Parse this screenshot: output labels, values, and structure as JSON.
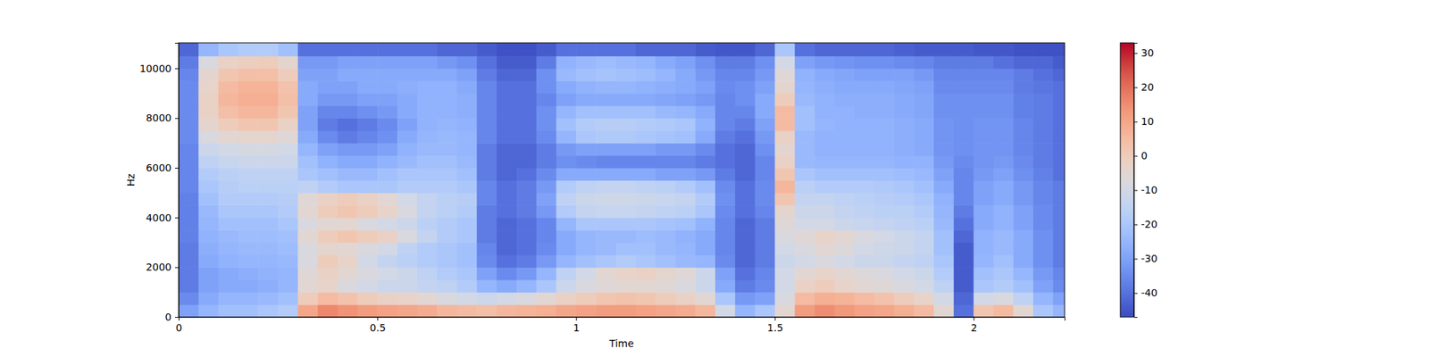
{
  "chart_data": {
    "type": "heatmap",
    "x_label": "Time",
    "y_label": "Hz",
    "xlim": [
      0,
      2.229
    ],
    "ylim": [
      0,
      11025
    ],
    "xticks": [
      0,
      0.5,
      1,
      1.5,
      2
    ],
    "yticks": [
      0,
      2000,
      4000,
      6000,
      8000,
      10000
    ],
    "x_bins": [
      0,
      0.05,
      0.1,
      0.15,
      0.2,
      0.25,
      0.3,
      0.35,
      0.4,
      0.45,
      0.5,
      0.55,
      0.6,
      0.65,
      0.7,
      0.75,
      0.8,
      0.85,
      0.9,
      0.95,
      1,
      1.05,
      1.1,
      1.15,
      1.2,
      1.25,
      1.3,
      1.35,
      1.4,
      1.45,
      1.5,
      1.55,
      1.6,
      1.65,
      1.7,
      1.75,
      1.8,
      1.85,
      1.9,
      1.95,
      2,
      2.05,
      2.1,
      2.15,
      2.2,
      2.229
    ],
    "y_bins": [
      0,
      500,
      1000,
      1500,
      2000,
      2500,
      3000,
      3500,
      4000,
      4500,
      5000,
      5500,
      6000,
      6500,
      7000,
      7500,
      8000,
      8500,
      9000,
      9500,
      10000,
      10500,
      11025
    ],
    "z": [
      [
        -30,
        -25,
        -22,
        -22,
        -20,
        -18,
        10,
        16,
        14,
        12,
        11,
        10,
        9,
        6,
        5,
        4,
        6,
        7,
        8,
        10,
        11,
        12,
        12,
        11,
        10,
        9,
        6,
        -10,
        -25,
        -20,
        -5,
        12,
        15,
        13,
        11,
        10,
        8,
        5,
        -5,
        -40,
        2,
        5,
        -5,
        -20,
        -25
      ],
      [
        -35,
        -28,
        -25,
        -25,
        -24,
        -22,
        0,
        5,
        3,
        0,
        -2,
        -3,
        -5,
        -8,
        -10,
        -12,
        -10,
        -8,
        -5,
        -2,
        0,
        2,
        3,
        2,
        0,
        -2,
        -5,
        -20,
        -32,
        -30,
        -8,
        5,
        8,
        7,
        5,
        3,
        0,
        -3,
        -10,
        -42,
        -10,
        -8,
        -15,
        -25,
        -30
      ],
      [
        -38,
        -30,
        -28,
        -28,
        -27,
        -25,
        -5,
        -3,
        -8,
        -10,
        -12,
        -12,
        -14,
        -15,
        -18,
        -25,
        -28,
        -25,
        -20,
        -12,
        -8,
        -6,
        -5,
        -5,
        -6,
        -8,
        -12,
        -28,
        -38,
        -35,
        -10,
        -2,
        0,
        -3,
        -5,
        -6,
        -8,
        -10,
        -15,
        -44,
        -20,
        -18,
        -22,
        -30,
        -35
      ],
      [
        -38,
        -30,
        -28,
        -27,
        -26,
        -25,
        -6,
        -2,
        -5,
        -8,
        -10,
        -12,
        -15,
        -18,
        -20,
        -30,
        -35,
        -32,
        -25,
        -15,
        -10,
        -5,
        -3,
        -2,
        -4,
        -6,
        -12,
        -30,
        -40,
        -36,
        -10,
        -5,
        -3,
        -5,
        -7,
        -8,
        -10,
        -12,
        -18,
        -44,
        -22,
        -20,
        -25,
        -32,
        -36
      ],
      [
        -38,
        -28,
        -26,
        -25,
        -25,
        -24,
        -8,
        0,
        -3,
        -10,
        -14,
        -16,
        -18,
        -20,
        -22,
        -35,
        -40,
        -38,
        -32,
        -25,
        -22,
        -20,
        -18,
        -20,
        -22,
        -24,
        -25,
        -35,
        -42,
        -38,
        -12,
        -10,
        -8,
        -10,
        -12,
        -12,
        -14,
        -15,
        -20,
        -44,
        -25,
        -22,
        -28,
        -34,
        -38
      ],
      [
        -38,
        -27,
        -25,
        -24,
        -24,
        -23,
        -8,
        -4,
        -5,
        -8,
        -10,
        -15,
        -18,
        -20,
        -22,
        -36,
        -42,
        -40,
        -35,
        -28,
        -25,
        -24,
        -22,
        -22,
        -24,
        -25,
        -28,
        -36,
        -42,
        -38,
        -10,
        -8,
        -5,
        -7,
        -10,
        -11,
        -12,
        -14,
        -22,
        -44,
        -26,
        -24,
        -28,
        -34,
        -38
      ],
      [
        -37,
        -26,
        -24,
        -23,
        -23,
        -22,
        -5,
        0,
        2,
        0,
        -2,
        -8,
        -14,
        -18,
        -20,
        -38,
        -42,
        -40,
        -36,
        -28,
        -25,
        -24,
        -24,
        -23,
        -24,
        -26,
        -28,
        -36,
        -42,
        -38,
        -8,
        -6,
        -3,
        -5,
        -8,
        -10,
        -12,
        -14,
        -22,
        -42,
        -26,
        -24,
        -28,
        -34,
        -38
      ],
      [
        -37,
        -25,
        -22,
        -22,
        -22,
        -20,
        -8,
        -5,
        -5,
        -8,
        -10,
        -12,
        -16,
        -18,
        -20,
        -38,
        -42,
        -40,
        -36,
        -25,
        -20,
        -20,
        -20,
        -20,
        -21,
        -22,
        -26,
        -36,
        -42,
        -38,
        -6,
        -10,
        -10,
        -12,
        -13,
        -14,
        -15,
        -16,
        -24,
        -40,
        -28,
        -26,
        -30,
        -35,
        -38
      ],
      [
        -37,
        -24,
        -20,
        -20,
        -20,
        -18,
        -5,
        0,
        2,
        0,
        -3,
        -8,
        -14,
        -16,
        -18,
        -38,
        -40,
        -38,
        -32,
        -18,
        -14,
        -13,
        -13,
        -14,
        -15,
        -16,
        -20,
        -35,
        -40,
        -36,
        -4,
        -12,
        -12,
        -14,
        -15,
        -16,
        -16,
        -18,
        -25,
        -38,
        -28,
        -26,
        -30,
        -35,
        -38
      ],
      [
        -37,
        -22,
        -18,
        -18,
        -18,
        -17,
        -6,
        -2,
        0,
        -2,
        -5,
        -10,
        -14,
        -16,
        -17,
        -36,
        -40,
        -38,
        -30,
        -15,
        -12,
        -11,
        -11,
        -12,
        -13,
        -14,
        -18,
        -34,
        -40,
        -35,
        2,
        -14,
        -14,
        -15,
        -16,
        -17,
        -18,
        -20,
        -26,
        -36,
        -30,
        -28,
        -32,
        -36,
        -38
      ],
      [
        -36,
        -20,
        -17,
        -16,
        -16,
        -16,
        -15,
        -18,
        -20,
        -20,
        -20,
        -18,
        -18,
        -18,
        -20,
        -36,
        -40,
        -38,
        -32,
        -18,
        -15,
        -14,
        -14,
        -15,
        -16,
        -18,
        -22,
        -35,
        -40,
        -35,
        6,
        -16,
        -18,
        -18,
        -18,
        -19,
        -20,
        -22,
        -28,
        -36,
        -30,
        -28,
        -32,
        -36,
        -38
      ],
      [
        -36,
        -18,
        -16,
        -15,
        -15,
        -15,
        -20,
        -22,
        -24,
        -24,
        -22,
        -20,
        -20,
        -20,
        -22,
        -38,
        -42,
        -40,
        -35,
        -28,
        -28,
        -28,
        -28,
        -28,
        -30,
        -30,
        -32,
        -38,
        -42,
        -36,
        2,
        -20,
        -22,
        -22,
        -22,
        -22,
        -23,
        -24,
        -30,
        -36,
        -32,
        -30,
        -34,
        -37,
        -40
      ],
      [
        -36,
        -15,
        -13,
        -12,
        -12,
        -12,
        -22,
        -26,
        -28,
        -28,
        -26,
        -24,
        -22,
        -22,
        -24,
        -38,
        -42,
        -42,
        -38,
        -34,
        -35,
        -36,
        -36,
        -36,
        -36,
        -36,
        -38,
        -40,
        -42,
        -36,
        -2,
        -24,
        -25,
        -25,
        -25,
        -25,
        -26,
        -26,
        -32,
        -35,
        -33,
        -32,
        -35,
        -38,
        -40
      ],
      [
        -36,
        -12,
        -10,
        -9,
        -9,
        -10,
        -25,
        -30,
        -32,
        -32,
        -30,
        -26,
        -24,
        -24,
        -25,
        -38,
        -42,
        -42,
        -38,
        -32,
        -30,
        -30,
        -30,
        -30,
        -32,
        -32,
        -35,
        -40,
        -42,
        -34,
        -4,
        -24,
        -26,
        -26,
        -26,
        -26,
        -27,
        -28,
        -33,
        -34,
        -33,
        -33,
        -36,
        -38,
        -40
      ],
      [
        -35,
        -8,
        -5,
        -4,
        -4,
        -6,
        -28,
        -35,
        -38,
        -36,
        -34,
        -28,
        -25,
        -24,
        -25,
        -36,
        -40,
        -40,
        -35,
        -25,
        -20,
        -19,
        -19,
        -20,
        -21,
        -22,
        -28,
        -38,
        -40,
        -32,
        -2,
        -24,
        -26,
        -26,
        -26,
        -26,
        -27,
        -28,
        -33,
        -34,
        -33,
        -33,
        -36,
        -38,
        -40
      ],
      [
        -35,
        -4,
        0,
        2,
        2,
        -2,
        -30,
        -38,
        -40,
        -38,
        -35,
        -30,
        -26,
        -25,
        -26,
        -36,
        -40,
        -40,
        -34,
        -22,
        -18,
        -17,
        -17,
        -18,
        -19,
        -20,
        -26,
        -36,
        -38,
        -30,
        5,
        -22,
        -25,
        -26,
        -26,
        -26,
        -27,
        -28,
        -33,
        -34,
        -33,
        -33,
        -36,
        -38,
        -40
      ],
      [
        -35,
        -2,
        4,
        6,
        6,
        2,
        -30,
        -36,
        -36,
        -34,
        -32,
        -28,
        -26,
        -26,
        -27,
        -36,
        -40,
        -40,
        -34,
        -25,
        -22,
        -22,
        -22,
        -22,
        -24,
        -25,
        -28,
        -36,
        -36,
        -28,
        5,
        -22,
        -26,
        -26,
        -27,
        -27,
        -28,
        -29,
        -34,
        -34,
        -34,
        -34,
        -37,
        -38,
        -40
      ],
      [
        -35,
        -2,
        6,
        8,
        8,
        4,
        -28,
        -32,
        -32,
        -30,
        -30,
        -28,
        -26,
        -26,
        -27,
        -36,
        -40,
        -40,
        -36,
        -30,
        -28,
        -28,
        -28,
        -28,
        -29,
        -30,
        -32,
        -36,
        -34,
        -28,
        0,
        -24,
        -26,
        -27,
        -27,
        -27,
        -28,
        -29,
        -34,
        -34,
        -34,
        -34,
        -37,
        -38,
        -40
      ],
      [
        -35,
        -3,
        5,
        7,
        7,
        3,
        -28,
        -30,
        -30,
        -28,
        -28,
        -27,
        -26,
        -26,
        -28,
        -36,
        -40,
        -40,
        -34,
        -28,
        -26,
        -25,
        -25,
        -26,
        -27,
        -28,
        -30,
        -35,
        -34,
        -30,
        -4,
        -25,
        -27,
        -28,
        -28,
        -28,
        -29,
        -30,
        -35,
        -35,
        -35,
        -35,
        -38,
        -39,
        -40
      ],
      [
        -36,
        -4,
        2,
        4,
        4,
        0,
        -30,
        -30,
        -28,
        -28,
        -28,
        -28,
        -28,
        -28,
        -30,
        -38,
        -42,
        -42,
        -34,
        -24,
        -22,
        -21,
        -22,
        -23,
        -25,
        -28,
        -32,
        -36,
        -36,
        -32,
        -6,
        -26,
        -28,
        -29,
        -30,
        -30,
        -30,
        -32,
        -36,
        -36,
        -36,
        -36,
        -38,
        -40,
        -42
      ],
      [
        -38,
        -8,
        -2,
        -1,
        0,
        -4,
        -32,
        -32,
        -30,
        -30,
        -30,
        -30,
        -30,
        -32,
        -34,
        -40,
        -44,
        -44,
        -38,
        -26,
        -24,
        -23,
        -24,
        -25,
        -28,
        -30,
        -34,
        -38,
        -38,
        -34,
        -10,
        -30,
        -32,
        -33,
        -34,
        -34,
        -35,
        -36,
        -38,
        -38,
        -38,
        -40,
        -42,
        -42,
        -44
      ],
      [
        -42,
        -25,
        -20,
        -18,
        -18,
        -22,
        -40,
        -40,
        -40,
        -40,
        -40,
        -40,
        -40,
        -42,
        -42,
        -44,
        -46,
        -46,
        -44,
        -40,
        -40,
        -40,
        -40,
        -42,
        -42,
        -42,
        -44,
        -45,
        -45,
        -42,
        -20,
        -40,
        -42,
        -42,
        -42,
        -42,
        -43,
        -44,
        -44,
        -44,
        -45,
        -45,
        -46,
        -46,
        -46
      ]
    ],
    "colorbar": {
      "range": [
        -47,
        33
      ],
      "ticks": [
        -40,
        -30,
        -20,
        -10,
        0,
        10,
        20,
        30
      ]
    }
  }
}
